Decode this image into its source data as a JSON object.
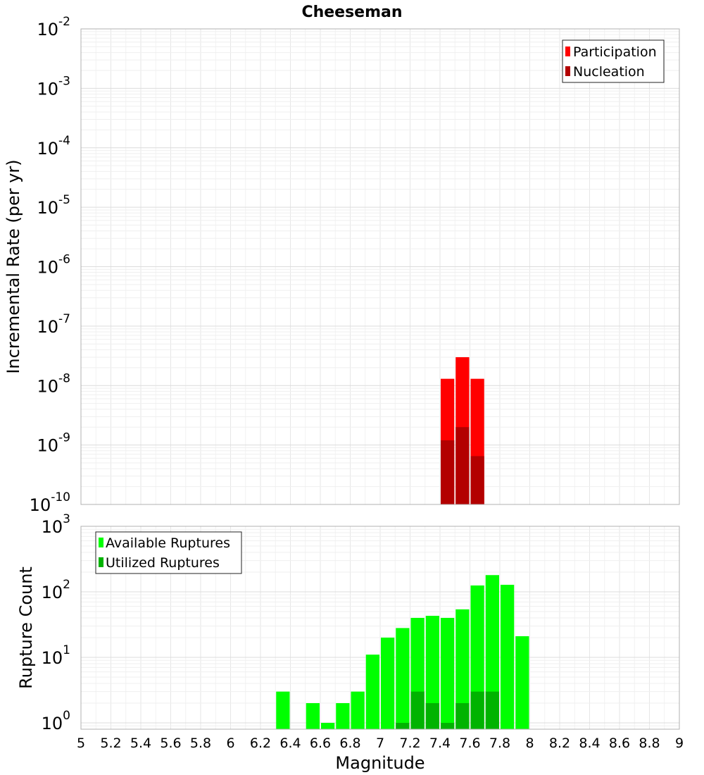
{
  "chart_data": [
    {
      "type": "bar",
      "title": "Cheeseman",
      "xlabel": "",
      "ylabel": "Incremental Rate (per yr)",
      "yscale": "log",
      "ylim": [
        1e-10,
        0.01
      ],
      "xlim": [
        5,
        9
      ],
      "y_tick_exponents": [
        -10,
        -9,
        -8,
        -7,
        -6,
        -5,
        -4,
        -3,
        -2
      ],
      "grid": true,
      "legend_position": "top-right",
      "bar_width": 0.1,
      "series": [
        {
          "name": "Participation",
          "color": "#ff0000",
          "x": [
            7.45,
            7.55,
            7.65
          ],
          "values": [
            1.3e-08,
            3e-08,
            1.3e-08
          ]
        },
        {
          "name": "Nucleation",
          "color": "#b30000",
          "x": [
            7.45,
            7.55,
            7.65
          ],
          "values": [
            1.2e-09,
            2e-09,
            6.5e-10
          ]
        }
      ]
    },
    {
      "type": "bar",
      "title": "",
      "xlabel": "Magnitude",
      "ylabel": "Rupture Count",
      "yscale": "log",
      "ylim": [
        0.8,
        1000
      ],
      "xlim": [
        5,
        9
      ],
      "y_tick_exponents": [
        0,
        1,
        2,
        3
      ],
      "x_ticks": [
        "5",
        "5.2",
        "5.4",
        "5.6",
        "5.8",
        "6",
        "6.2",
        "6.4",
        "6.6",
        "6.8",
        "7",
        "7.2",
        "7.4",
        "7.6",
        "7.8",
        "8",
        "8.2",
        "8.4",
        "8.6",
        "8.8",
        "9"
      ],
      "grid": true,
      "legend_position": "top-left",
      "bar_width": 0.1,
      "series": [
        {
          "name": "Available Ruptures",
          "color": "#00ff00",
          "x": [
            6.35,
            6.55,
            6.65,
            6.75,
            6.85,
            6.95,
            7.05,
            7.15,
            7.25,
            7.35,
            7.45,
            7.55,
            7.65,
            7.75,
            7.85,
            7.95
          ],
          "values": [
            3,
            2,
            1,
            2,
            3,
            11,
            20,
            28,
            40,
            43,
            40,
            54,
            125,
            180,
            128,
            21
          ]
        },
        {
          "name": "Utilized Ruptures",
          "color": "#00b300",
          "x": [
            7.15,
            7.25,
            7.35,
            7.45,
            7.55,
            7.65,
            7.75
          ],
          "values": [
            1,
            3,
            2,
            1,
            2,
            3,
            3
          ]
        }
      ]
    }
  ]
}
